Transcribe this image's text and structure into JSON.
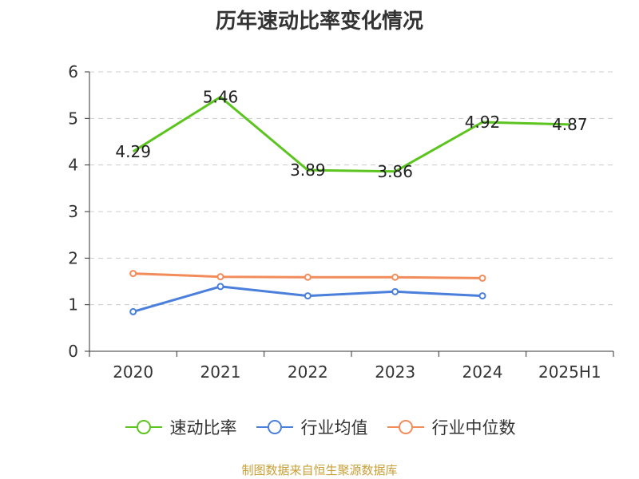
{
  "chart_data": {
    "type": "line",
    "title": "历年速动比率变化情况",
    "categories": [
      "2020",
      "2021",
      "2022",
      "2023",
      "2024",
      "2025H1"
    ],
    "series": [
      {
        "name": "速动比率",
        "values": [
          4.29,
          5.46,
          3.89,
          3.86,
          4.92,
          4.87
        ],
        "color": "#5cc41e",
        "show_labels": true,
        "show_markers": false
      },
      {
        "name": "行业均值",
        "values": [
          0.85,
          1.39,
          1.19,
          1.28,
          1.19,
          null
        ],
        "color": "#4a7fdb",
        "show_labels": false,
        "show_markers": true
      },
      {
        "name": "行业中位数",
        "values": [
          1.67,
          1.6,
          1.59,
          1.59,
          1.57,
          null
        ],
        "color": "#f28c5a",
        "show_labels": false,
        "show_markers": true
      }
    ],
    "ylim": [
      0,
      6
    ],
    "yticks": [
      0,
      1,
      2,
      3,
      4,
      5,
      6
    ],
    "grid": true,
    "legend_position": "bottom"
  },
  "source_note": "制图数据来自恒生聚源数据库"
}
